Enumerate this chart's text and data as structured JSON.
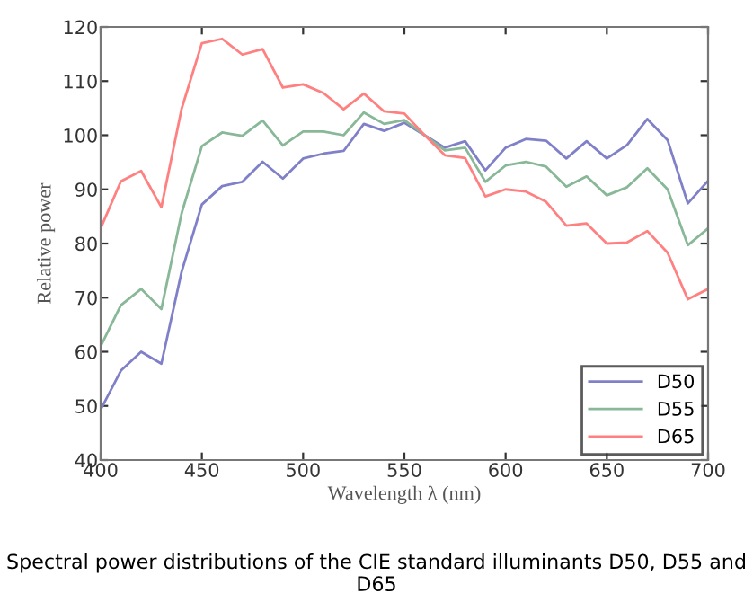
{
  "chart_data": {
    "type": "line",
    "xlabel": "Wavelength λ (nm)",
    "ylabel": "Relative power",
    "x": [
      400,
      410,
      420,
      430,
      440,
      450,
      460,
      470,
      480,
      490,
      500,
      510,
      520,
      530,
      540,
      550,
      560,
      570,
      580,
      590,
      600,
      610,
      620,
      630,
      640,
      650,
      660,
      670,
      680,
      690,
      700
    ],
    "series": [
      {
        "name": "D50",
        "color": "#8080c8",
        "values": [
          49.3,
          56.5,
          60,
          57.8,
          74.8,
          87.2,
          90.6,
          91.4,
          95.1,
          92,
          95.7,
          96.6,
          97.1,
          102.1,
          100.8,
          102.3,
          100,
          97.7,
          98.9,
          93.5,
          97.7,
          99.3,
          99,
          95.7,
          98.9,
          95.7,
          98.2,
          103,
          99.1,
          87.4,
          91.6
        ]
      },
      {
        "name": "D55",
        "color": "#88b898",
        "values": [
          61,
          68.6,
          71.6,
          67.9,
          85.6,
          98,
          100.5,
          99.9,
          102.7,
          98.1,
          100.7,
          100.7,
          100,
          104.2,
          102.1,
          102.8,
          100,
          97.2,
          97.7,
          91.4,
          94.4,
          95.1,
          94.2,
          90.5,
          92.4,
          88.9,
          90.4,
          93.9,
          90,
          79.7,
          82.8
        ]
      },
      {
        "name": "D65",
        "color": "#ff8080",
        "values": [
          82.8,
          91.5,
          93.4,
          86.7,
          104.9,
          117,
          117.8,
          114.9,
          115.9,
          108.8,
          109.4,
          107.8,
          104.8,
          107.7,
          104.4,
          104,
          100,
          96.3,
          95.8,
          88.7,
          90,
          89.6,
          87.7,
          83.3,
          83.7,
          80,
          80.2,
          82.3,
          78.3,
          69.7,
          71.6
        ]
      }
    ],
    "xlim": [
      400,
      700
    ],
    "xticks": [
      400,
      450,
      500,
      550,
      600,
      650,
      700
    ],
    "ylim": [
      40,
      120
    ],
    "yticks": [
      40,
      50,
      60,
      70,
      80,
      90,
      100,
      110,
      120
    ],
    "grid": false,
    "legend": "bottom right",
    "line_style": "solid",
    "marker": "none",
    "annotations": [
      "Spectral power distributions of the CIE standard illuminants D50, D55 and D65"
    ]
  }
}
